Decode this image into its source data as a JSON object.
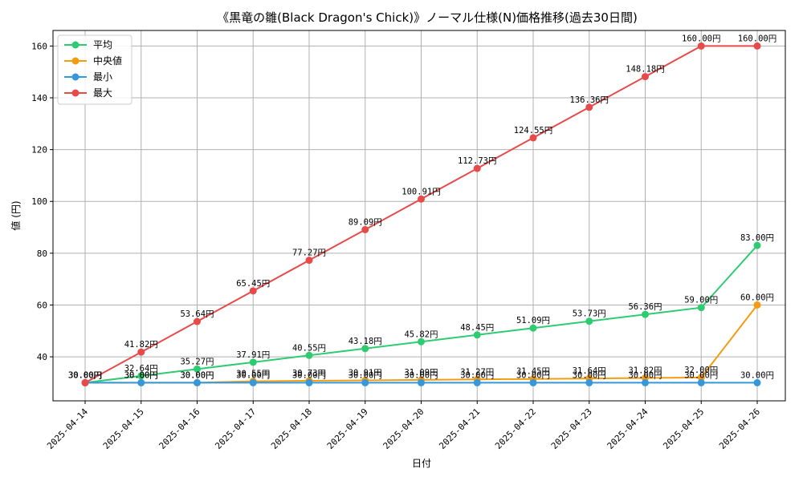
{
  "chart_data": {
    "type": "line",
    "title": "《黒竜の雛(Black Dragon's Chick)》ノーマル仕様(N)価格推移(過去30日間)",
    "xlabel": "日付",
    "ylabel": "値 (円)",
    "categories": [
      "2025-04-14",
      "2025-04-15",
      "2025-04-16",
      "2025-04-17",
      "2025-04-18",
      "2025-04-19",
      "2025-04-20",
      "2025-04-21",
      "2025-04-22",
      "2025-04-23",
      "2025-04-24",
      "2025-04-25",
      "2025-04-26"
    ],
    "ylim": [
      23,
      166
    ],
    "yticks": [
      40,
      60,
      80,
      100,
      120,
      140,
      160
    ],
    "grid": true,
    "legend_position": "top-left",
    "unit_suffix": "円",
    "series": [
      {
        "name": "平均",
        "color": "#2ecc71",
        "values": [
          30.0,
          32.64,
          35.27,
          37.91,
          40.55,
          43.18,
          45.82,
          48.45,
          51.09,
          53.73,
          56.36,
          59.0,
          83.0
        ]
      },
      {
        "name": "中央値",
        "color": "#f39c12",
        "values": [
          30.0,
          30.0,
          30.0,
          30.55,
          30.73,
          30.91,
          31.09,
          31.27,
          31.45,
          31.64,
          31.82,
          32.0,
          60.0
        ]
      },
      {
        "name": "最小",
        "color": "#3498db",
        "values": [
          30.0,
          30.0,
          30.0,
          30.0,
          30.0,
          30.0,
          30.0,
          30.0,
          30.0,
          30.0,
          30.0,
          30.0,
          30.0
        ]
      },
      {
        "name": "最大",
        "color": "#e84a4a",
        "values": [
          30.0,
          41.82,
          53.64,
          65.45,
          77.27,
          89.09,
          100.91,
          112.73,
          124.55,
          136.36,
          148.18,
          160.0,
          160.0
        ]
      }
    ]
  }
}
